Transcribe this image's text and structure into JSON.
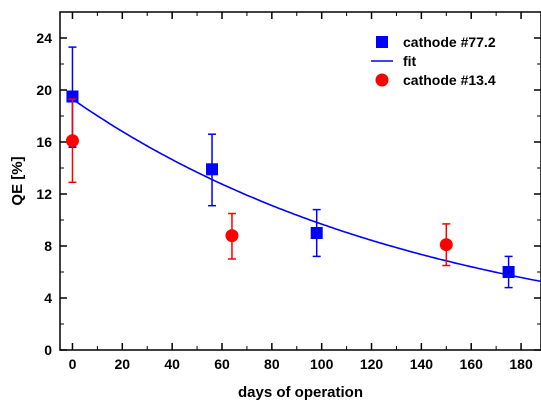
{
  "chart_data": {
    "type": "scatter",
    "xlabel": "days of operation",
    "ylabel": "QE [%]",
    "xlim": [
      -5,
      188
    ],
    "ylim": [
      0,
      26
    ],
    "x_ticks": [
      0,
      20,
      40,
      60,
      80,
      100,
      120,
      140,
      160,
      180
    ],
    "y_ticks": [
      0,
      4,
      8,
      12,
      16,
      20,
      24
    ],
    "grid": false,
    "legend_position": "top-right",
    "series": [
      {
        "name": "cathode #77.2",
        "marker": "square",
        "color": "#0000ff",
        "points": [
          {
            "x": 0,
            "y": 19.5,
            "err_low": 15.6,
            "err_high": 23.3
          },
          {
            "x": 56,
            "y": 13.9,
            "err_low": 11.1,
            "err_high": 16.6
          },
          {
            "x": 98,
            "y": 9.0,
            "err_low": 7.2,
            "err_high": 10.8
          },
          {
            "x": 175,
            "y": 6.0,
            "err_low": 4.8,
            "err_high": 7.2
          }
        ]
      },
      {
        "name": "fit",
        "style": "line",
        "color": "#0000ff",
        "model": "exponential",
        "a": 19.3,
        "decay_days": 145,
        "x_range": [
          0,
          188
        ]
      },
      {
        "name": "cathode #13.4",
        "marker": "circle",
        "color": "#ff0000",
        "points": [
          {
            "x": 0,
            "y": 16.1,
            "err_low": 12.9,
            "err_high": 19.3
          },
          {
            "x": 64,
            "y": 8.8,
            "err_low": 7.0,
            "err_high": 10.5
          },
          {
            "x": 150,
            "y": 8.1,
            "err_low": 6.5,
            "err_high": 9.7
          }
        ]
      }
    ]
  }
}
